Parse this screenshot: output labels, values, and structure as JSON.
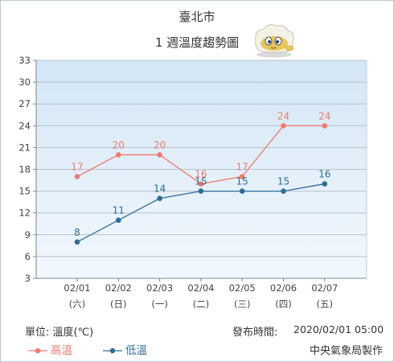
{
  "header": {
    "city": "臺北市",
    "subtitle": "1 週溫度趨勢圖",
    "mascot_icon": "weather-mascot"
  },
  "footer": {
    "unit": "單位: 溫度(℃)",
    "issued_label": "發布時間:",
    "issued_time": "2020/02/01 05:00",
    "agency": "中央氣象局製作"
  },
  "colors": {
    "high": "#ef7b6b",
    "low": "#2e6d97",
    "plot_bg_top": "#d3e6f6",
    "plot_bg_bottom": "#f2f8fd",
    "grid": "#b9c2c9"
  },
  "chart_data": {
    "type": "line",
    "title": "1 週溫度趨勢圖",
    "categories": [
      "02/01",
      "02/02",
      "02/03",
      "02/04",
      "02/05",
      "02/06",
      "02/07"
    ],
    "weekdays": [
      "(六)",
      "(日)",
      "(一)",
      "(二)",
      "(三)",
      "(四)",
      "(五)"
    ],
    "series": [
      {
        "name": "高溫",
        "values": [
          17,
          20,
          20,
          16,
          17,
          24,
          24
        ]
      },
      {
        "name": "低溫",
        "values": [
          8,
          11,
          14,
          15,
          15,
          15,
          16
        ]
      }
    ],
    "ylim": [
      3,
      33
    ],
    "yticks": [
      3,
      6,
      9,
      12,
      15,
      18,
      21,
      24,
      27,
      30,
      33
    ],
    "grid": true,
    "legend": "bottom-left"
  }
}
